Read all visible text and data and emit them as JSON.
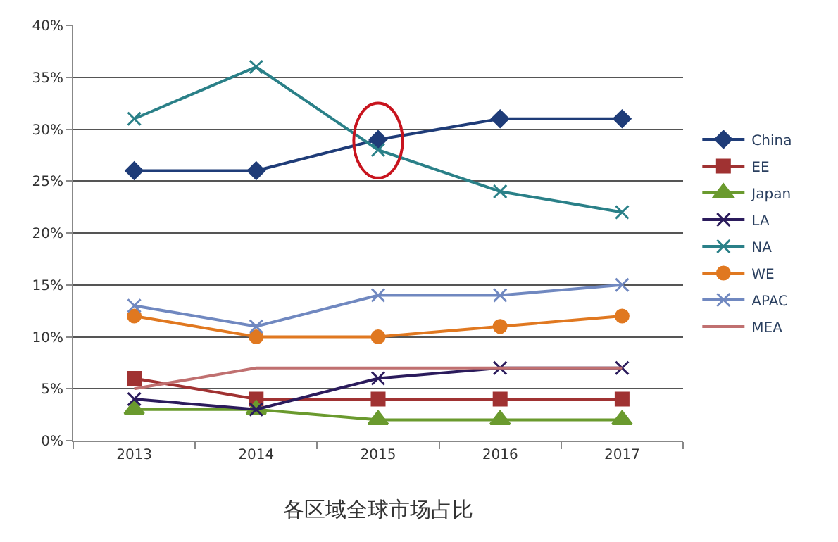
{
  "chart_data": {
    "type": "line",
    "categories": [
      "2013",
      "2014",
      "2015",
      "2016",
      "2017"
    ],
    "series": [
      {
        "name": "China",
        "color": "#1f3c78",
        "marker": "diamond",
        "values": [
          26,
          26,
          29,
          31,
          31
        ]
      },
      {
        "name": "EE",
        "color": "#a03232",
        "marker": "square",
        "values": [
          6,
          4,
          4,
          4,
          4
        ]
      },
      {
        "name": "Japan",
        "color": "#6a9a2e",
        "marker": "triangle",
        "values": [
          3,
          3,
          2,
          2,
          2
        ]
      },
      {
        "name": "LA",
        "color": "#2b1b5c",
        "marker": "cross",
        "values": [
          4,
          3,
          6,
          7,
          7
        ]
      },
      {
        "name": "NA",
        "color": "#2a8088",
        "marker": "cross",
        "values": [
          31,
          36,
          28,
          24,
          22
        ]
      },
      {
        "name": "WE",
        "color": "#e07820",
        "marker": "circle",
        "values": [
          12,
          10,
          10,
          11,
          12
        ]
      },
      {
        "name": "APAC",
        "color": "#7088c0",
        "marker": "cross",
        "values": [
          13,
          11,
          14,
          14,
          15
        ]
      },
      {
        "name": "MEA",
        "color": "#c07070",
        "marker": "none",
        "values": [
          5,
          7,
          7,
          7,
          7
        ]
      }
    ],
    "ylim": [
      0,
      40
    ],
    "yticks": [
      {
        "value": 0,
        "label": "0%"
      },
      {
        "value": 5,
        "label": "5%"
      },
      {
        "value": 10,
        "label": "10%"
      },
      {
        "value": 15,
        "label": "15%"
      },
      {
        "value": 20,
        "label": "20%"
      },
      {
        "value": 25,
        "label": "25%"
      },
      {
        "value": 30,
        "label": "30%"
      },
      {
        "value": 35,
        "label": "35%"
      },
      {
        "value": 40,
        "label": "40%"
      }
    ],
    "grid": "y",
    "legend": "right",
    "line_style": "solid",
    "annotations": [
      "各区域全球市场占比"
    ]
  }
}
